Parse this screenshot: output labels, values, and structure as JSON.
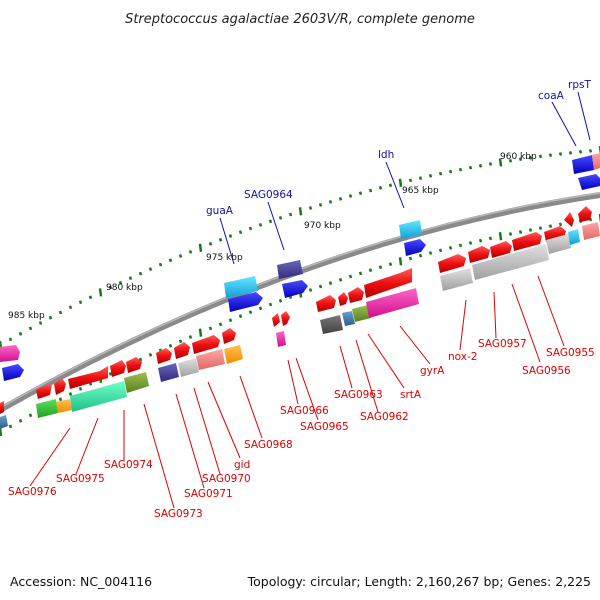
{
  "title": "Streptococcus agalactiae 2603V/R, complete genome",
  "footer": {
    "accession": "Accession: NC_004116",
    "summary": "Topology: circular; Length: 2,160,267 bp; Genes: 2,225"
  },
  "colors": {
    "backbone": "#808080",
    "tick": "#1a7a1a",
    "red_label": "#dd0000",
    "blue_label": "#1010aa"
  },
  "kbp_labels": [
    "985 kbp",
    "980 kbp",
    "975 kbp",
    "970 kbp",
    "965 kbp",
    "960 kbp"
  ],
  "labels_bottom": [
    "SAG0976",
    "SAG0975",
    "SAG0974",
    "SAG0973",
    "SAG0971",
    "SAG0970",
    "gid",
    "SAG0968",
    "SAG0966",
    "SAG0965",
    "SAG0963",
    "SAG0962",
    "srtA",
    "gyrA",
    "nox-2",
    "SAG0957",
    "SAG0956",
    "SAG0955"
  ],
  "labels_top": [
    "guaA",
    "SAG0964",
    "ldh",
    "coaA",
    "rpsT"
  ]
}
